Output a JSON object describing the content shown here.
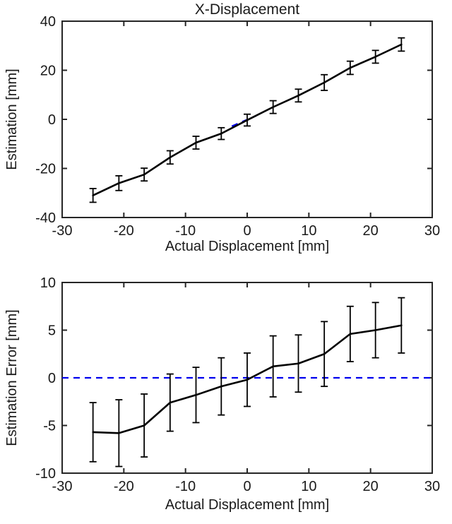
{
  "figure": {
    "background": "#ffffff"
  },
  "colors": {
    "line": "#000000",
    "reference": "#0000ee",
    "axis": "#262626",
    "text": "#1a1a1a"
  },
  "chart_data": [
    {
      "type": "line",
      "title": "X-Displacement",
      "xlabel": "Actual Displacement [mm]",
      "ylabel": "Estimation [mm]",
      "xlim": [
        -30,
        30
      ],
      "ylim": [
        -40,
        40
      ],
      "xticks": [
        -30,
        -20,
        -10,
        0,
        10,
        20,
        30
      ],
      "yticks": [
        -40,
        -20,
        0,
        20,
        40
      ],
      "grid": false,
      "legend": null,
      "x": [
        -25,
        -20.8,
        -16.7,
        -12.5,
        -8.3,
        -4.2,
        0,
        4.2,
        8.3,
        12.5,
        16.7,
        20.8,
        25
      ],
      "y": [
        -31,
        -26,
        -22.5,
        -15.5,
        -9.5,
        -5.8,
        -0.3,
        5.0,
        9.7,
        15.0,
        21.0,
        25.5,
        30.5
      ],
      "yerr": [
        2.8,
        3.0,
        2.6,
        2.7,
        2.6,
        2.4,
        2.4,
        2.6,
        2.6,
        3.2,
        2.7,
        2.6,
        2.7
      ],
      "ref_line": {
        "style": "dashed",
        "x1": -2.5,
        "y1": -2.8,
        "x2": 1.5,
        "y2": 1.5
      }
    },
    {
      "type": "line",
      "title": "",
      "xlabel": "Actual Displacement [mm]",
      "ylabel": "Estimation Error [mm]",
      "xlim": [
        -30,
        30
      ],
      "ylim": [
        -10,
        10
      ],
      "xticks": [
        -30,
        -20,
        -10,
        0,
        10,
        20,
        30
      ],
      "yticks": [
        -10,
        -5,
        0,
        5,
        10
      ],
      "grid": false,
      "legend": null,
      "x": [
        -25,
        -20.8,
        -16.7,
        -12.5,
        -8.3,
        -4.2,
        0,
        4.2,
        8.3,
        12.5,
        16.7,
        20.8,
        25
      ],
      "y": [
        -5.7,
        -5.8,
        -5.0,
        -2.6,
        -1.8,
        -0.9,
        -0.2,
        1.2,
        1.5,
        2.5,
        4.6,
        5.0,
        5.5
      ],
      "yerr": [
        3.1,
        3.5,
        3.3,
        3.0,
        2.9,
        3.0,
        2.8,
        3.2,
        3.0,
        3.4,
        2.9,
        2.9,
        2.9
      ],
      "ref_line": {
        "style": "dashed",
        "x1": -30,
        "y1": 0,
        "x2": 30,
        "y2": 0
      }
    }
  ]
}
